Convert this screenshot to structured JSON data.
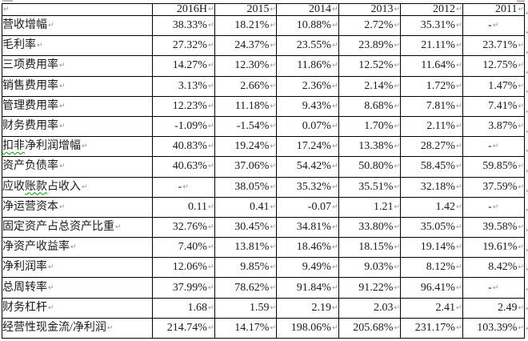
{
  "marks": {
    "cell_end": "↵"
  },
  "colors": {
    "border": "#000000",
    "text": "#1b1b1b",
    "mark": "#8f959b",
    "squiggle": "#00a400"
  },
  "table": {
    "header": {
      "years": [
        "2016H",
        "2015",
        "2014",
        "2013",
        "2012",
        "2011"
      ]
    },
    "rows": [
      {
        "label": [
          {
            "t": "营收增幅",
            "sq": false
          }
        ],
        "values": [
          "38.33%",
          "18.21%",
          "10.88%",
          "2.72%",
          "35.31%",
          "-"
        ]
      },
      {
        "label": [
          {
            "t": "毛利率",
            "sq": false
          }
        ],
        "values": [
          "27.32%",
          "24.37%",
          "23.55%",
          "23.89%",
          "21.11%",
          "23.71%"
        ]
      },
      {
        "label": [
          {
            "t": "三项费用率",
            "sq": false
          }
        ],
        "values": [
          "14.27%",
          "12.30%",
          "11.86%",
          "12.52%",
          "11.64%",
          "12.75%"
        ]
      },
      {
        "label": [
          {
            "t": "销售费用率",
            "sq": false
          }
        ],
        "values": [
          "3.13%",
          "2.66%",
          "2.36%",
          "2.14%",
          "1.72%",
          "1.47%"
        ]
      },
      {
        "label": [
          {
            "t": "管理费用率",
            "sq": false
          }
        ],
        "values": [
          "12.23%",
          "11.18%",
          "9.43%",
          "8.68%",
          "7.81%",
          "7.41%"
        ]
      },
      {
        "label": [
          {
            "t": "财务费用率",
            "sq": false
          }
        ],
        "values": [
          "-1.09%",
          "-1.54%",
          "0.07%",
          "1.70%",
          "2.11%",
          "3.87%"
        ]
      },
      {
        "label": [
          {
            "t": "扣非",
            "sq": true
          },
          {
            "t": "净利润增幅",
            "sq": false
          }
        ],
        "values": [
          "40.83%",
          "19.24%",
          "17.24%",
          "13.38%",
          "28.27%",
          "-"
        ]
      },
      {
        "label": [
          {
            "t": "资产负债率",
            "sq": false
          }
        ],
        "values": [
          "40.63%",
          "37.06%",
          "54.42%",
          "50.80%",
          "58.45%",
          "59.85%"
        ]
      },
      {
        "label": [
          {
            "t": "应收",
            "sq": false
          },
          {
            "t": "账款",
            "sq": true
          },
          {
            "t": "占收入",
            "sq": false
          }
        ],
        "values": [
          "-",
          "38.05%",
          "35.32%",
          "35.51%",
          "32.18%",
          "37.59%"
        ]
      },
      {
        "label": [
          {
            "t": "净运营资本",
            "sq": false
          }
        ],
        "values": [
          "0.11",
          "0.41",
          "-0.07",
          "1.21",
          "1.42",
          "-"
        ]
      },
      {
        "label": [
          {
            "t": "固定资产占总资产比重",
            "sq": false
          }
        ],
        "values": [
          "32.76%",
          "30.45%",
          "34.81%",
          "33.80%",
          "35.05%",
          "39.58%"
        ]
      },
      {
        "label": [
          {
            "t": "净资产收益率",
            "sq": false
          }
        ],
        "values": [
          "7.40%",
          "13.81%",
          "18.46%",
          "18.15%",
          "19.14%",
          "19.61%"
        ]
      },
      {
        "label": [
          {
            "t": "净利润率",
            "sq": false
          }
        ],
        "values": [
          "12.06%",
          "9.85%",
          "9.49%",
          "9.03%",
          "8.12%",
          "8.42%"
        ]
      },
      {
        "label": [
          {
            "t": "总周转率",
            "sq": false
          }
        ],
        "values": [
          "37.99%",
          "78.62%",
          "91.84%",
          "91.22%",
          "96.41%",
          "-"
        ]
      },
      {
        "label": [
          {
            "t": "财务杠杆",
            "sq": false
          }
        ],
        "values": [
          "1.68",
          "1.59",
          "2.19",
          "2.03",
          "2.41",
          "2.49"
        ]
      },
      {
        "label": [
          {
            "t": "经营性现金流/净利润",
            "sq": false
          }
        ],
        "values": [
          "214.74%",
          "14.17%",
          "198.06%",
          "205.68%",
          "231.17%",
          "103.39%"
        ]
      }
    ]
  }
}
